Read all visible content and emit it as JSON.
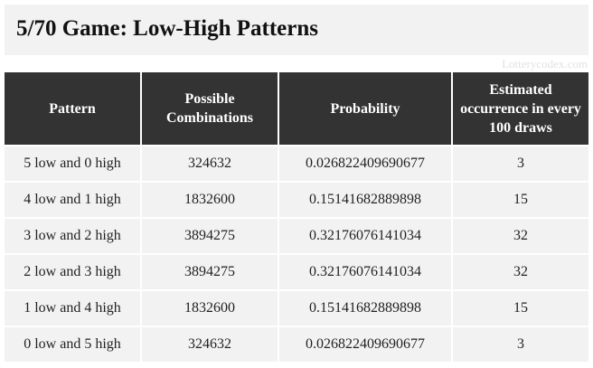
{
  "header": {
    "title": "5/70 Game: Low-High Patterns",
    "watermark": "Lotterycodex.com"
  },
  "table": {
    "columns": [
      "Pattern",
      "Possible Combinations",
      "Probability",
      "Estimated occurrence in every 100 draws"
    ],
    "rows": [
      [
        "5 low and 0 high",
        324632,
        0.026822409690677,
        3
      ],
      [
        "4 low and 1 high",
        1832600,
        0.15141682889898,
        15
      ],
      [
        "3 low and 2 high",
        3894275,
        0.32176076141034,
        32
      ],
      [
        "2 low and 3 high",
        3894275,
        0.32176076141034,
        32
      ],
      [
        "1 low and 4 high",
        1832600,
        0.15141682889898,
        15
      ],
      [
        "0 low and 5 high",
        324632,
        0.026822409690677,
        3
      ]
    ]
  }
}
